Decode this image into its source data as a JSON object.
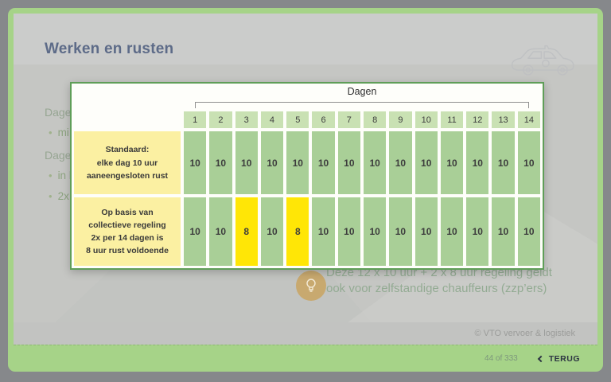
{
  "slide": {
    "title": "Werken en rusten",
    "fragments": [
      {
        "bullet": "",
        "text": "Dagel"
      },
      {
        "bullet": "•",
        "text": "mi"
      },
      {
        "bullet": "",
        "text": "Dagel"
      },
      {
        "bullet": "•",
        "text": "in l"
      },
      {
        "bullet": "•",
        "text": "2x"
      }
    ],
    "tip": {
      "line1": "Deze 12 x 10 uur + 2 x 8 uur regeling geldt",
      "line2": "ook voor zelfstandige chauffeurs (zzp’ers)"
    },
    "footer": "© VTO vervoer & logistiek"
  },
  "dialog": {
    "table": {
      "group_header": "Dagen",
      "columns": [
        "1",
        "2",
        "3",
        "4",
        "5",
        "6",
        "7",
        "8",
        "9",
        "10",
        "11",
        "12",
        "13",
        "14"
      ],
      "rows": [
        {
          "label": "Standaard:\nelke dag 10 uur\naaneengesloten rust",
          "values": [
            "10",
            "10",
            "10",
            "10",
            "10",
            "10",
            "10",
            "10",
            "10",
            "10",
            "10",
            "10",
            "10",
            "10"
          ],
          "highlighted_columns": []
        },
        {
          "label": "Op basis van\ncollectieve regeling\n2x per 14 dagen is\n8 uur rust voldoende",
          "values": [
            "10",
            "10",
            "8",
            "10",
            "8",
            "10",
            "10",
            "10",
            "10",
            "10",
            "10",
            "10",
            "10",
            "10"
          ],
          "highlighted_columns": [
            3,
            5
          ]
        }
      ]
    }
  },
  "navbar": {
    "page_indicator": "44 of 333",
    "back_label": "TERUG"
  },
  "colors": {
    "frame": "#86888b",
    "slide_green": "#a6d388",
    "dialog_border": "#5f9e58",
    "cell_green": "#a9cf97",
    "header_cell_green": "#c9e1b3",
    "label_yellow": "#fbf0a2",
    "highlight_yellow": "#ffe606",
    "title_text": "#5d6b88",
    "tip_text": "#93ab93",
    "tip_icon_bg": "#c8a96f"
  }
}
